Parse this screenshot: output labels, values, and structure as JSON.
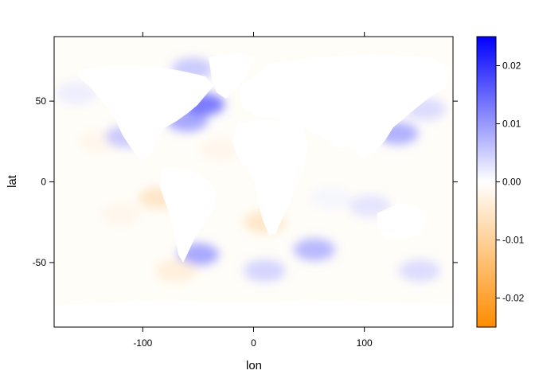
{
  "chart_data": {
    "type": "heatmap",
    "title": "",
    "xlabel": "lon",
    "ylabel": "lat",
    "xlim": [
      -180,
      180
    ],
    "ylim": [
      -90,
      90
    ],
    "x_ticks": [
      {
        "value": -100,
        "label": "-100"
      },
      {
        "value": 0,
        "label": "0"
      },
      {
        "value": 100,
        "label": "100"
      }
    ],
    "y_ticks": [
      {
        "value": -50,
        "label": "-50"
      },
      {
        "value": 0,
        "label": "0"
      },
      {
        "value": 50,
        "label": "50"
      }
    ],
    "colorbar": {
      "range": [
        -0.025,
        0.025
      ],
      "ticks": [
        {
          "value": 0.02,
          "label": "0.02"
        },
        {
          "value": 0.01,
          "label": "0.01"
        },
        {
          "value": 0.0,
          "label": "0.00"
        },
        {
          "value": -0.01,
          "label": "-0.01"
        },
        {
          "value": -0.02,
          "label": "-0.02"
        }
      ],
      "colors": {
        "high": "#0000ff",
        "mid": "#ffffff",
        "low": "#ff8c00"
      }
    },
    "features": [
      {
        "lon": -140,
        "lat": 25,
        "value": -0.002
      },
      {
        "lon": -115,
        "lat": 28,
        "value": 0.006
      },
      {
        "lon": -160,
        "lat": 55,
        "value": 0.002
      },
      {
        "lon": -60,
        "lat": 38,
        "value": 0.01
      },
      {
        "lon": -45,
        "lat": 48,
        "value": 0.015
      },
      {
        "lon": -55,
        "lat": 70,
        "value": 0.006
      },
      {
        "lon": -30,
        "lat": 20,
        "value": -0.002
      },
      {
        "lon": -85,
        "lat": -10,
        "value": -0.006
      },
      {
        "lon": -120,
        "lat": -20,
        "value": -0.002
      },
      {
        "lon": -50,
        "lat": -45,
        "value": 0.01
      },
      {
        "lon": -70,
        "lat": -55,
        "value": -0.004
      },
      {
        "lon": 10,
        "lat": -25,
        "value": -0.006
      },
      {
        "lon": 10,
        "lat": -55,
        "value": 0.005
      },
      {
        "lon": 55,
        "lat": -42,
        "value": 0.008
      },
      {
        "lon": 130,
        "lat": 30,
        "value": 0.009
      },
      {
        "lon": 155,
        "lat": 45,
        "value": 0.004
      },
      {
        "lon": 105,
        "lat": -15,
        "value": 0.003
      },
      {
        "lon": 150,
        "lat": -55,
        "value": 0.004
      },
      {
        "lon": 70,
        "lat": -10,
        "value": 0.001
      }
    ]
  }
}
